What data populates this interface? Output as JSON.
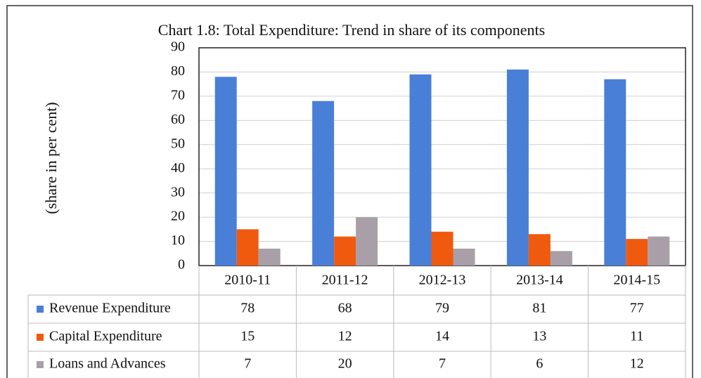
{
  "chart_data": {
    "type": "bar",
    "title": "Chart 1.8: Total Expenditure: Trend in share of its components",
    "y_label": "(share in per cent)",
    "categories": [
      "2010-11",
      "2011-12",
      "2012-13",
      "2013-14",
      "2014-15"
    ],
    "series": [
      {
        "name": "Revenue Expenditure",
        "color": "#4a7fd8",
        "values": [
          78,
          68,
          79,
          81,
          77
        ]
      },
      {
        "name": "Capital Expenditure",
        "color": "#f05a0f",
        "values": [
          15,
          12,
          14,
          13,
          11
        ]
      },
      {
        "name": "Loans and Advances",
        "color": "#a89fa8",
        "values": [
          7,
          20,
          7,
          6,
          12
        ]
      }
    ],
    "ylim": [
      0,
      90
    ],
    "yticks": [
      0,
      10,
      20,
      30,
      40,
      50,
      60,
      70,
      80,
      90
    ],
    "grid": true
  }
}
